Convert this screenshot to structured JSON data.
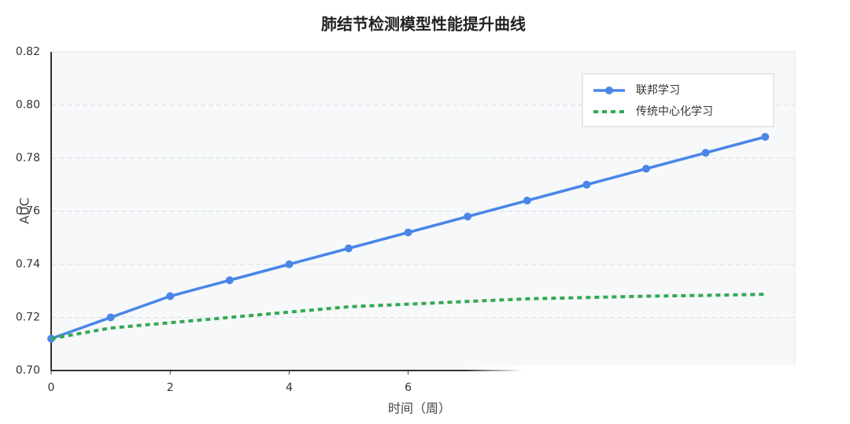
{
  "chart_data": {
    "type": "line",
    "title": "肺结节检测模型性能提升曲线",
    "x_label": "时间（周）",
    "y_label": "AUC",
    "x": [
      0,
      1,
      2,
      3,
      4,
      5,
      6,
      7,
      8,
      9,
      10,
      11,
      12
    ],
    "series": [
      {
        "name": "联邦学习",
        "color": "#4a86e8",
        "style": "solid",
        "markers": true,
        "values": [
          0.712,
          0.72,
          0.728,
          0.734,
          0.74,
          0.746,
          0.752,
          0.758,
          0.764,
          0.77,
          0.776,
          0.782,
          0.788
        ]
      },
      {
        "name": "传统中心化学习",
        "color": "#34a853",
        "style": "dotted",
        "markers": false,
        "values": [
          0.712,
          0.716,
          0.718,
          0.72,
          0.722,
          0.724,
          0.725,
          0.726,
          0.727,
          0.7275,
          0.728,
          0.7283,
          0.7287
        ]
      }
    ],
    "xlim": [
      0,
      12.5
    ],
    "xticks": [
      0,
      2,
      4,
      6
    ],
    "ylim": [
      0.7,
      0.82
    ],
    "yticks": [
      {
        "value": 0.7,
        "label": "0.70"
      },
      {
        "value": 0.72,
        "label": "0.72"
      },
      {
        "value": 0.74,
        "label": "0.74"
      },
      {
        "value": 0.76,
        "label": "0.76"
      },
      {
        "value": 0.78,
        "label": "0.78"
      },
      {
        "value": 0.8,
        "label": "0.80"
      },
      {
        "value": 0.82,
        "label": "0.82"
      }
    ],
    "grid": true,
    "legend": "upper right"
  }
}
